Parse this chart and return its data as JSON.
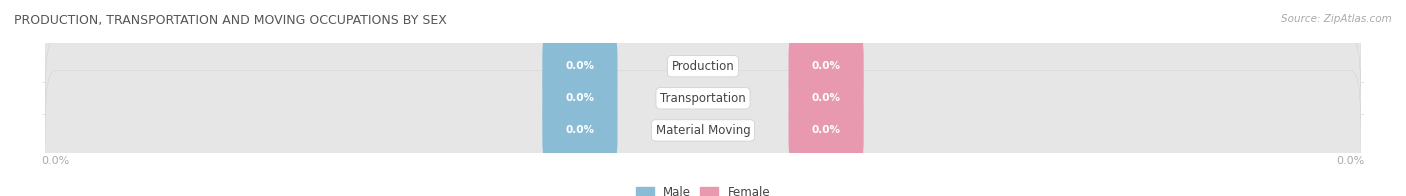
{
  "title": "PRODUCTION, TRANSPORTATION AND MOVING OCCUPATIONS BY SEX",
  "source": "Source: ZipAtlas.com",
  "categories": [
    "Production",
    "Transportation",
    "Material Moving"
  ],
  "male_values": [
    0.0,
    0.0,
    0.0
  ],
  "female_values": [
    0.0,
    0.0,
    0.0
  ],
  "male_color": "#8bbcd6",
  "female_color": "#e899b0",
  "bar_bg_color": "#e6e6e6",
  "bar_bg_shadow": "#d0d0d0",
  "category_text_color": "#444444",
  "title_color": "#555555",
  "axis_label_color": "#aaaaaa",
  "figsize": [
    14.06,
    1.96
  ],
  "dpi": 100
}
